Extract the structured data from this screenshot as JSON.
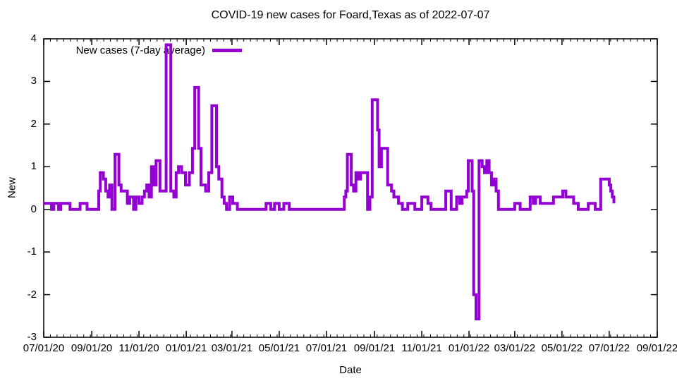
{
  "title": "COVID-19 new cases for Foard,Texas as of 2022-07-07",
  "legend_label": "New cases (7-day average)",
  "colors": {
    "line": "#9400d3",
    "axis": "#000000",
    "text": "#000000",
    "background": "#ffffff"
  },
  "chart_data": {
    "type": "line",
    "title": "COVID-19 new cases for Foard,Texas as of 2022-07-07",
    "xlabel": "Date",
    "ylabel": "New",
    "ylim": [
      -3,
      4
    ],
    "grid": false,
    "legend": {
      "position": "top-left-inside",
      "entries": [
        "New cases (7-day average)"
      ]
    },
    "x_tick_labels": [
      "07/01/20",
      "09/01/20",
      "11/01/20",
      "01/01/21",
      "03/01/21",
      "05/01/21",
      "07/01/21",
      "09/01/21",
      "11/01/21",
      "01/01/22",
      "03/01/22",
      "05/01/22",
      "07/01/22",
      "09/01/22"
    ],
    "x_tick_day_offsets": [
      0,
      62,
      123,
      184,
      243,
      304,
      365,
      427,
      488,
      549,
      608,
      669,
      730,
      792
    ],
    "x_axis_days_total": 792,
    "y_tick_labels": [
      "-3",
      "-2",
      "-1",
      "0",
      "1",
      "2",
      "3",
      "4"
    ],
    "series": [
      {
        "name": "New cases (7-day average)",
        "color": "#9400d3",
        "interpolation": "step-after",
        "x_unit": "days since 07/01/20",
        "points": [
          [
            0,
            0.14
          ],
          [
            10,
            0
          ],
          [
            13,
            0.14
          ],
          [
            19,
            0
          ],
          [
            22,
            0.14
          ],
          [
            34,
            0
          ],
          [
            47,
            0.14
          ],
          [
            56,
            0
          ],
          [
            71,
            0.43
          ],
          [
            73,
            0.86
          ],
          [
            77,
            0.71
          ],
          [
            80,
            0.43
          ],
          [
            83,
            0.29
          ],
          [
            85,
            0.57
          ],
          [
            88,
            0
          ],
          [
            92,
            1.29
          ],
          [
            97,
            0.57
          ],
          [
            100,
            0.43
          ],
          [
            108,
            0.14
          ],
          [
            111,
            0.29
          ],
          [
            116,
            0
          ],
          [
            119,
            0.29
          ],
          [
            123,
            0.14
          ],
          [
            127,
            0.29
          ],
          [
            130,
            0.43
          ],
          [
            133,
            0.57
          ],
          [
            136,
            0.29
          ],
          [
            139,
            1.0
          ],
          [
            142,
            0.57
          ],
          [
            145,
            1.14
          ],
          [
            150,
            0.43
          ],
          [
            158,
            3.86
          ],
          [
            164,
            0.43
          ],
          [
            168,
            0.29
          ],
          [
            171,
            0.86
          ],
          [
            174,
            1.0
          ],
          [
            178,
            0.86
          ],
          [
            183,
            0.57
          ],
          [
            188,
            0.86
          ],
          [
            192,
            1.43
          ],
          [
            195,
            2.86
          ],
          [
            200,
            1.43
          ],
          [
            203,
            0.57
          ],
          [
            209,
            0.43
          ],
          [
            213,
            0.86
          ],
          [
            217,
            2.43
          ],
          [
            223,
            1.0
          ],
          [
            226,
            0.71
          ],
          [
            230,
            0.29
          ],
          [
            233,
            0.14
          ],
          [
            236,
            0
          ],
          [
            240,
            0.29
          ],
          [
            244,
            0.14
          ],
          [
            250,
            0
          ],
          [
            287,
            0.14
          ],
          [
            293,
            0
          ],
          [
            298,
            0.14
          ],
          [
            304,
            0
          ],
          [
            310,
            0.14
          ],
          [
            317,
            0
          ],
          [
            388,
            0.29
          ],
          [
            390,
            0.43
          ],
          [
            392,
            1.29
          ],
          [
            397,
            0.57
          ],
          [
            400,
            0.43
          ],
          [
            403,
            0.86
          ],
          [
            406,
            0.71
          ],
          [
            409,
            0.86
          ],
          [
            418,
            0
          ],
          [
            421,
            0.29
          ],
          [
            424,
            2.57
          ],
          [
            431,
            1.86
          ],
          [
            433,
            1.0
          ],
          [
            436,
            1.43
          ],
          [
            444,
            0.57
          ],
          [
            449,
            0.43
          ],
          [
            452,
            0.29
          ],
          [
            458,
            0.14
          ],
          [
            463,
            0
          ],
          [
            470,
            0.14
          ],
          [
            479,
            0
          ],
          [
            488,
            0.29
          ],
          [
            496,
            0.14
          ],
          [
            500,
            0
          ],
          [
            519,
            0.43
          ],
          [
            526,
            0
          ],
          [
            533,
            0.29
          ],
          [
            537,
            0.14
          ],
          [
            540,
            0.29
          ],
          [
            546,
            0.43
          ],
          [
            548,
            1.14
          ],
          [
            553,
            0.43
          ],
          [
            555,
            -2.0
          ],
          [
            558,
            -2.57
          ],
          [
            562,
            1.14
          ],
          [
            566,
            1.0
          ],
          [
            569,
            0.86
          ],
          [
            572,
            1.14
          ],
          [
            575,
            0.86
          ],
          [
            578,
            0.57
          ],
          [
            581,
            0.71
          ],
          [
            584,
            0.43
          ],
          [
            587,
            0
          ],
          [
            608,
            0.14
          ],
          [
            615,
            0
          ],
          [
            628,
            0.29
          ],
          [
            632,
            0.14
          ],
          [
            635,
            0.29
          ],
          [
            641,
            0.14
          ],
          [
            649,
            0.14
          ],
          [
            658,
            0.29
          ],
          [
            670,
            0.43
          ],
          [
            674,
            0.29
          ],
          [
            684,
            0.14
          ],
          [
            690,
            0
          ],
          [
            703,
            0.14
          ],
          [
            712,
            0
          ],
          [
            719,
            0.71
          ],
          [
            730,
            0.57
          ],
          [
            732,
            0.43
          ],
          [
            734,
            0.29
          ],
          [
            736,
            0.14
          ]
        ]
      }
    ]
  }
}
